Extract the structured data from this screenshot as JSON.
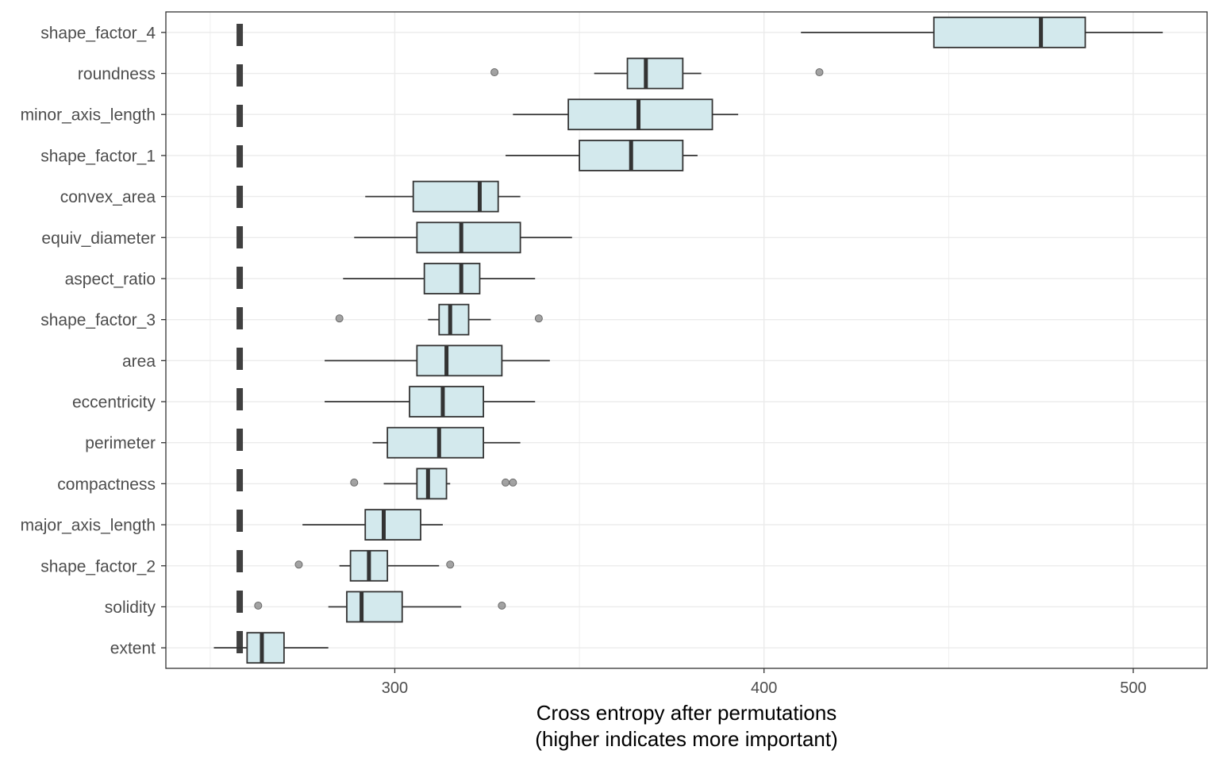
{
  "chart_data": {
    "type": "boxplot",
    "orientation": "horizontal",
    "xlabel": "Cross entropy after permutations",
    "xlabel_line2": "(higher indicates more important)",
    "ylabel": "",
    "x_ticks": [
      300,
      400,
      500
    ],
    "x_range": [
      238,
      520
    ],
    "grid": true,
    "reference_line": {
      "x": 258,
      "style": "dashed"
    },
    "box_fill": "#d3e9ed",
    "series": [
      {
        "name": "shape_factor_4",
        "whisker_low": 410,
        "q1": 446,
        "median": 475,
        "q3": 487,
        "whisker_high": 508,
        "outliers": []
      },
      {
        "name": "roundness",
        "whisker_low": 354,
        "q1": 363,
        "median": 368,
        "q3": 378,
        "whisker_high": 383,
        "outliers": [
          327,
          415
        ]
      },
      {
        "name": "minor_axis_length",
        "whisker_low": 332,
        "q1": 347,
        "median": 366,
        "q3": 386,
        "whisker_high": 393,
        "outliers": []
      },
      {
        "name": "shape_factor_1",
        "whisker_low": 330,
        "q1": 350,
        "median": 364,
        "q3": 378,
        "whisker_high": 382,
        "outliers": []
      },
      {
        "name": "convex_area",
        "whisker_low": 292,
        "q1": 305,
        "median": 323,
        "q3": 328,
        "whisker_high": 334,
        "outliers": []
      },
      {
        "name": "equiv_diameter",
        "whisker_low": 289,
        "q1": 306,
        "median": 318,
        "q3": 334,
        "whisker_high": 348,
        "outliers": []
      },
      {
        "name": "aspect_ratio",
        "whisker_low": 286,
        "q1": 308,
        "median": 318,
        "q3": 323,
        "whisker_high": 338,
        "outliers": []
      },
      {
        "name": "shape_factor_3",
        "whisker_low": 309,
        "q1": 312,
        "median": 315,
        "q3": 320,
        "whisker_high": 326,
        "outliers": [
          285,
          339
        ]
      },
      {
        "name": "area",
        "whisker_low": 281,
        "q1": 306,
        "median": 314,
        "q3": 329,
        "whisker_high": 342,
        "outliers": []
      },
      {
        "name": "eccentricity",
        "whisker_low": 281,
        "q1": 304,
        "median": 313,
        "q3": 324,
        "whisker_high": 338,
        "outliers": []
      },
      {
        "name": "perimeter",
        "whisker_low": 294,
        "q1": 298,
        "median": 312,
        "q3": 324,
        "whisker_high": 334,
        "outliers": []
      },
      {
        "name": "compactness",
        "whisker_low": 297,
        "q1": 306,
        "median": 309,
        "q3": 314,
        "whisker_high": 315,
        "outliers": [
          289,
          330,
          332
        ]
      },
      {
        "name": "major_axis_length",
        "whisker_low": 275,
        "q1": 292,
        "median": 297,
        "q3": 307,
        "whisker_high": 313,
        "outliers": []
      },
      {
        "name": "shape_factor_2",
        "whisker_low": 285,
        "q1": 288,
        "median": 293,
        "q3": 298,
        "whisker_high": 312,
        "outliers": [
          274,
          315
        ]
      },
      {
        "name": "solidity",
        "whisker_low": 282,
        "q1": 287,
        "median": 291,
        "q3": 302,
        "whisker_high": 318,
        "outliers": [
          263,
          329
        ]
      },
      {
        "name": "extent",
        "whisker_low": 251,
        "q1": 260,
        "median": 264,
        "q3": 270,
        "whisker_high": 282,
        "outliers": []
      }
    ]
  }
}
